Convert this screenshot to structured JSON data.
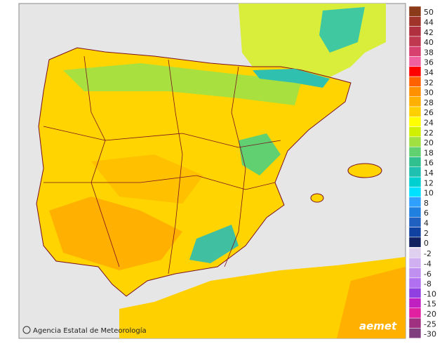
{
  "legend": {
    "items": [
      {
        "label": 50,
        "color": "#8b3a1a"
      },
      {
        "label": 44,
        "color": "#a0332a"
      },
      {
        "label": 42,
        "color": "#b03040"
      },
      {
        "label": 40,
        "color": "#c03850"
      },
      {
        "label": 38,
        "color": "#d84070"
      },
      {
        "label": 36,
        "color": "#f060a0"
      },
      {
        "label": 34,
        "color": "#ff0000"
      },
      {
        "label": 32,
        "color": "#ff6000"
      },
      {
        "label": 30,
        "color": "#ff9000"
      },
      {
        "label": 28,
        "color": "#ffb000"
      },
      {
        "label": 26,
        "color": "#ffd000"
      },
      {
        "label": 24,
        "color": "#ffff00"
      },
      {
        "label": 22,
        "color": "#d0f000"
      },
      {
        "label": 20,
        "color": "#a0e040"
      },
      {
        "label": 18,
        "color": "#60d070"
      },
      {
        "label": 16,
        "color": "#30c090"
      },
      {
        "label": 14,
        "color": "#20c0b0"
      },
      {
        "label": 12,
        "color": "#00d0d0"
      },
      {
        "label": 10,
        "color": "#00e0ff"
      },
      {
        "label": 8,
        "color": "#30a0ff"
      },
      {
        "label": 6,
        "color": "#2080e0"
      },
      {
        "label": 4,
        "color": "#2060c0"
      },
      {
        "label": 2,
        "color": "#1040a0"
      },
      {
        "label": 0,
        "color": "#102060"
      }
    ],
    "negative_items": [
      {
        "label": -2,
        "color": "#e0d0f0"
      },
      {
        "label": -4,
        "color": "#d0b0f0"
      },
      {
        "label": -6,
        "color": "#c090f0"
      },
      {
        "label": -8,
        "color": "#b070f0"
      },
      {
        "label": -10,
        "color": "#9040e0"
      },
      {
        "label": -15,
        "color": "#c020c0"
      },
      {
        "label": -20,
        "color": "#e020a0"
      },
      {
        "label": -25,
        "color": "#a03080"
      },
      {
        "label": -30,
        "color": "#804080"
      }
    ]
  },
  "credit": "Agencia Estatal de Meteorología",
  "logo": "aemet"
}
